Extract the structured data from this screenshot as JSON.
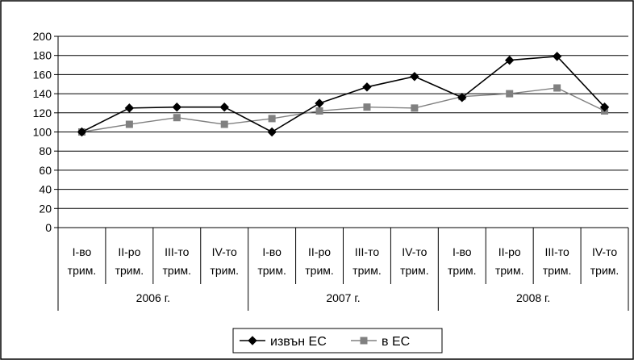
{
  "chart_data": {
    "type": "line",
    "ylim": [
      0,
      200
    ],
    "y_ticks": [
      0,
      20,
      40,
      60,
      80,
      100,
      120,
      140,
      160,
      180,
      200
    ],
    "grid": true,
    "legend_position": "bottom",
    "categories": [
      {
        "quarter": [
          "I-во",
          "трим."
        ],
        "year": "2006 г."
      },
      {
        "quarter": [
          "II-ро",
          "трим."
        ],
        "year": "2006 г."
      },
      {
        "quarter": [
          "III-то",
          "трим."
        ],
        "year": "2006 г."
      },
      {
        "quarter": [
          "IV-то",
          "трим."
        ],
        "year": "2006 г."
      },
      {
        "quarter": [
          "I-во",
          "трим."
        ],
        "year": "2007 г."
      },
      {
        "quarter": [
          "II-ро",
          "трим."
        ],
        "year": "2007 г."
      },
      {
        "quarter": [
          "III-то",
          "трим."
        ],
        "year": "2007 г."
      },
      {
        "quarter": [
          "IV-то",
          "трим."
        ],
        "year": "2007 г."
      },
      {
        "quarter": [
          "I-во",
          "трим."
        ],
        "year": "2008 г."
      },
      {
        "quarter": [
          "II-ро",
          "трим."
        ],
        "year": "2008 г."
      },
      {
        "quarter": [
          "III-то",
          "трим."
        ],
        "year": "2008 г."
      },
      {
        "quarter": [
          "IV-то",
          "трим."
        ],
        "year": "2008 г."
      }
    ],
    "years": [
      "2006 г.",
      "2007 г.",
      "2008 г."
    ],
    "series": [
      {
        "name": "извън ЕС",
        "color": "#000000",
        "marker": "diamond",
        "values": [
          100,
          125,
          126,
          126,
          100,
          130,
          147,
          158,
          136,
          175,
          179,
          126
        ]
      },
      {
        "name": "в ЕС",
        "color": "#808080",
        "marker": "square",
        "values": [
          100,
          108,
          115,
          108,
          114,
          122,
          126,
          125,
          137,
          140,
          146,
          122
        ]
      }
    ]
  }
}
